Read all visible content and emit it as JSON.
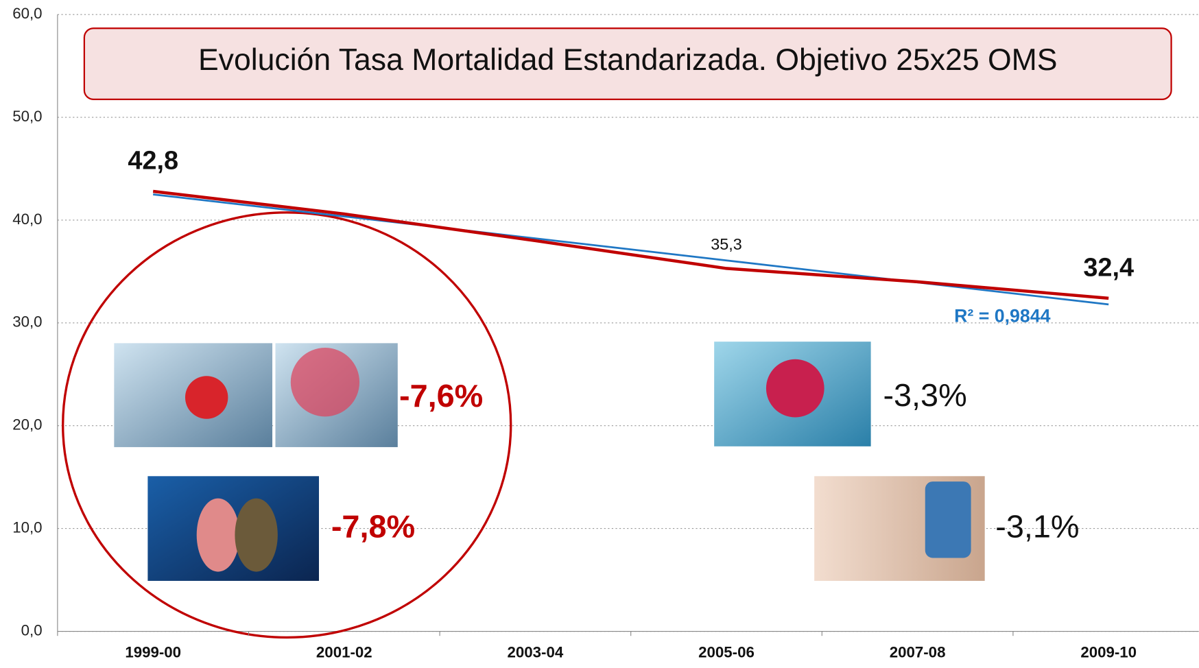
{
  "chart_data": {
    "type": "line",
    "title": "Evolución Tasa Mortalidad Estandarizada. Objetivo 25x25 OMS",
    "categories": [
      "1999-00",
      "2001-02",
      "2003-04",
      "2005-06",
      "2007-08",
      "2009-10"
    ],
    "values": [
      42.8,
      40.6,
      38.0,
      35.3,
      34.0,
      32.4
    ],
    "value_labels": [
      "42,8",
      null,
      null,
      "35,3",
      null,
      "32,4"
    ],
    "color": "#c00000",
    "trendline": {
      "values": [
        42.5,
        40.36,
        38.22,
        36.08,
        33.94,
        31.8
      ],
      "color": "#1f77c4",
      "label": "R² = 0,9844"
    },
    "ylim": [
      0,
      60
    ],
    "yticks": [
      {
        "value": 0,
        "label": "0,0"
      },
      {
        "value": 10,
        "label": "10,0"
      },
      {
        "value": 20,
        "label": "20,0"
      },
      {
        "value": 30,
        "label": "30,0"
      },
      {
        "value": 40,
        "label": "40,0"
      },
      {
        "value": 50,
        "label": "50,0"
      },
      {
        "value": 60,
        "label": "60,0"
      }
    ],
    "grid": true,
    "annotations": [
      "-7,6%",
      "-7,8%",
      "-3,3%",
      "-3,1%"
    ]
  }
}
